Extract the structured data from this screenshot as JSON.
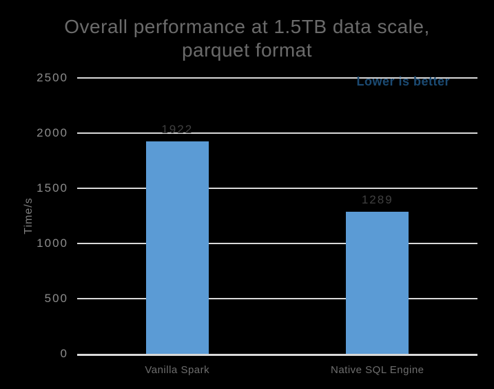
{
  "chart_data": {
    "type": "bar",
    "title": "Overall performance at 1.5TB data scale, parquet format",
    "title_lines": [
      "Overall performance at 1.5TB data scale,",
      "parquet format"
    ],
    "categories": [
      "Vanilla Spark",
      "Native SQL Engine"
    ],
    "values": [
      1922,
      1289
    ],
    "data_labels": [
      "1922",
      "1289"
    ],
    "xlabel": "",
    "ylabel": "Time/s",
    "ylim": [
      0,
      2500
    ],
    "yticks": [
      0,
      500,
      1000,
      1500,
      2000,
      2500
    ],
    "annotation": "Lower is better",
    "legend": "none",
    "grid": "horizontal",
    "colors": {
      "background": "#000000",
      "bar": "#5B9BD5",
      "gridline": "#D9D9D9",
      "title": "#6B6B6B",
      "tick_label": "#8C8C8C",
      "axis_label": "#7F7F7F",
      "category_label": "#6E6E6E",
      "data_label": "#404040",
      "annotation": "#1B4A72"
    }
  }
}
